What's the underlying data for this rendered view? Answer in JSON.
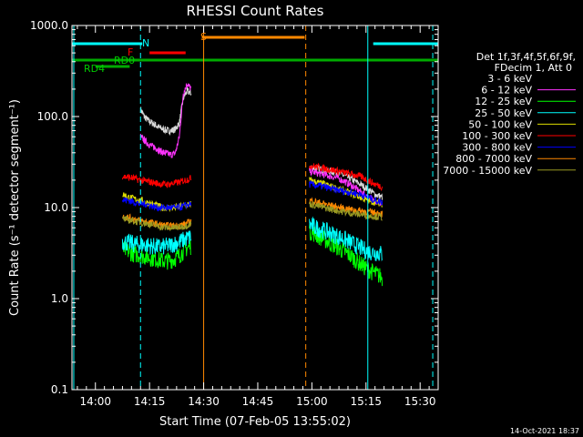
{
  "chart_data": {
    "type": "line",
    "title": "RHESSI Count Rates",
    "xlabel": "Start Time (07-Feb-05 13:55:02)",
    "ylabel": "Count Rate (s⁻¹ detector segment⁻¹)",
    "yscale": "log",
    "ylim": [
      0.1,
      1000
    ],
    "xlim_minutes_after_1355": [
      -1.5,
      100
    ],
    "y_tick_labels": [
      "0.1",
      "1.0",
      "10.0",
      "100.0",
      "1000.0"
    ],
    "y_tick_values": [
      0.1,
      1,
      10,
      100,
      1000
    ],
    "x_tick_labels": [
      "14:00",
      "14:15",
      "14:30",
      "14:45",
      "15:00",
      "15:15",
      "15:30"
    ],
    "x_tick_values_min": [
      5,
      20,
      35,
      50,
      65,
      80,
      95
    ],
    "legend": {
      "header1": "Det 1f,3f,4f,5f,6f,9f,",
      "header2": "FDecim 1, Att 0",
      "placement": "right"
    },
    "series": [
      {
        "name": "3 - 6 keV",
        "color": "#000000",
        "seg1": [
          120,
          100,
          90,
          85,
          80,
          75,
          72,
          70,
          70,
          73,
          85,
          160,
          190,
          180
        ],
        "seg2": [
          28,
          27,
          26,
          25,
          24,
          22,
          20,
          18,
          16,
          14,
          13
        ]
      },
      {
        "name": "6 - 12 keV",
        "color": "#ff33ff",
        "seg1": [
          60,
          55,
          50,
          47,
          45,
          42,
          40,
          39,
          38,
          40,
          60,
          180,
          230,
          200
        ],
        "seg2": [
          25,
          24,
          23,
          22,
          21,
          19,
          17,
          15,
          13,
          12,
          11
        ]
      },
      {
        "name": "12 - 25 keV",
        "color": "#00ff00",
        "seg1": [
          3.5,
          3.3,
          3.1,
          3.0,
          2.9,
          2.8,
          2.7,
          2.6,
          2.6,
          2.7,
          3.0,
          3.5,
          3.8
        ],
        "seg2": [
          5.5,
          5.0,
          4.5,
          4.0,
          3.6,
          3.2,
          2.8,
          2.4,
          2.1,
          1.9,
          1.7
        ]
      },
      {
        "name": "25 - 50 keV",
        "color": "#00ffff",
        "seg1": [
          4.2,
          4.1,
          4.0,
          3.9,
          3.9,
          3.8,
          3.7,
          3.7,
          3.8,
          4.0,
          4.2,
          4.5,
          4.8
        ],
        "seg2": [
          6.5,
          6.0,
          5.6,
          5.2,
          4.8,
          4.4,
          4.0,
          3.6,
          3.3,
          3.2,
          3.1
        ]
      },
      {
        "name": "50 - 100 keV",
        "color": "#dddd00",
        "seg1": [
          14,
          13,
          12.5,
          12,
          11.5,
          11,
          10.5,
          10,
          10,
          10,
          10.2,
          10.5,
          11
        ],
        "seg2": [
          20,
          19,
          18,
          17,
          16,
          15,
          14,
          13,
          12,
          11.5,
          11
        ]
      },
      {
        "name": "100 - 300 keV",
        "color": "#ff0000",
        "seg1": [
          22,
          21.5,
          21,
          20,
          19.5,
          19,
          18.5,
          18,
          18,
          18.5,
          19,
          20,
          21
        ],
        "seg2": [
          29,
          28,
          27,
          26,
          25,
          24,
          23,
          22,
          20,
          18,
          17
        ]
      },
      {
        "name": "300 - 800 keV",
        "color": "#0000ff",
        "seg1": [
          12,
          12,
          11.5,
          11,
          11,
          10.5,
          10,
          10,
          10,
          10,
          10,
          10.5,
          11
        ],
        "seg2": [
          18,
          17.5,
          17,
          16,
          15.5,
          15,
          14.5,
          14,
          13,
          12,
          11.5
        ]
      },
      {
        "name": "800 - 7000 keV",
        "color": "#ff8800",
        "seg1": [
          8,
          7.8,
          7.5,
          7.2,
          7.0,
          6.8,
          6.6,
          6.4,
          6.3,
          6.3,
          6.4,
          6.6,
          7.0
        ],
        "seg2": [
          12,
          11.5,
          11,
          10.5,
          10,
          9.7,
          9.4,
          9.2,
          9.0,
          8.8,
          8.6
        ]
      },
      {
        "name": "7000 - 15000 keV",
        "color": "#999922",
        "seg1": [
          7.5,
          7.3,
          7.1,
          6.9,
          6.7,
          6.5,
          6.3,
          6.1,
          6.0,
          6.0,
          6.1,
          6.3,
          6.6
        ],
        "seg2": [
          11,
          10.5,
          10,
          9.6,
          9.2,
          8.9,
          8.6,
          8.4,
          8.2,
          8.0,
          7.8
        ]
      }
    ],
    "annotations": {
      "flag_labels": [
        "N",
        "F",
        "S",
        "RD0",
        "RD4"
      ],
      "footer_date": "14-Oct-2021 18:37"
    }
  }
}
